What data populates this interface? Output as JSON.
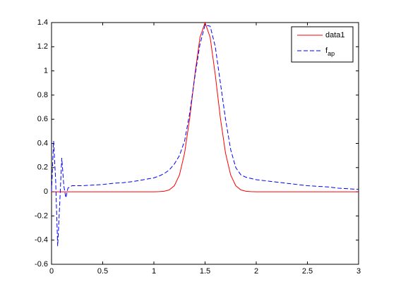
{
  "chart_data": {
    "type": "line",
    "x": [
      0,
      0.02,
      0.04,
      0.06,
      0.08,
      0.1,
      0.12,
      0.14,
      0.16,
      0.2,
      0.3,
      0.4,
      0.5,
      0.6,
      0.7,
      0.8,
      0.9,
      1.0,
      1.05,
      1.1,
      1.15,
      1.2,
      1.25,
      1.3,
      1.35,
      1.4,
      1.45,
      1.5,
      1.55,
      1.6,
      1.65,
      1.7,
      1.75,
      1.8,
      1.85,
      1.9,
      1.95,
      2.0,
      2.1,
      2.2,
      2.3,
      2.4,
      2.5,
      2.6,
      2.7,
      2.8,
      2.9,
      3.0
    ],
    "series": [
      {
        "name": "data1",
        "color": "#ff0000",
        "dash": false,
        "values": [
          0,
          0,
          0,
          0,
          0,
          0,
          0,
          0,
          0,
          0,
          0,
          0,
          0,
          0,
          0,
          0,
          0,
          0,
          0.001,
          0.004,
          0.015,
          0.05,
          0.139,
          0.32,
          0.608,
          0.966,
          1.276,
          1.4,
          1.276,
          0.966,
          0.608,
          0.32,
          0.139,
          0.05,
          0.015,
          0.004,
          0.001,
          0,
          0,
          0,
          0,
          0,
          0,
          0,
          0,
          0,
          0,
          0
        ]
      },
      {
        "name": "f_ap",
        "color": "#0000ff",
        "dash": true,
        "values": [
          0,
          0.42,
          0.1,
          -0.45,
          -0.1,
          0.28,
          0.05,
          -0.05,
          0.03,
          0.05,
          0.05,
          0.055,
          0.06,
          0.07,
          0.075,
          0.085,
          0.1,
          0.115,
          0.13,
          0.15,
          0.18,
          0.23,
          0.3,
          0.42,
          0.65,
          0.95,
          1.22,
          1.38,
          1.37,
          1.2,
          0.9,
          0.6,
          0.35,
          0.2,
          0.14,
          0.12,
          0.11,
          0.1,
          0.09,
          0.08,
          0.07,
          0.06,
          0.05,
          0.045,
          0.04,
          0.03,
          0.025,
          0.02
        ]
      }
    ],
    "xlim": [
      0,
      3
    ],
    "xticks": [
      0,
      0.5,
      1,
      1.5,
      2,
      2.5,
      3
    ],
    "ylim": [
      -0.6,
      1.4
    ],
    "yticks": [
      -0.6,
      -0.4,
      -0.2,
      0,
      0.2,
      0.4,
      0.6,
      0.8,
      1,
      1.2,
      1.4
    ],
    "legend": "top-right"
  }
}
